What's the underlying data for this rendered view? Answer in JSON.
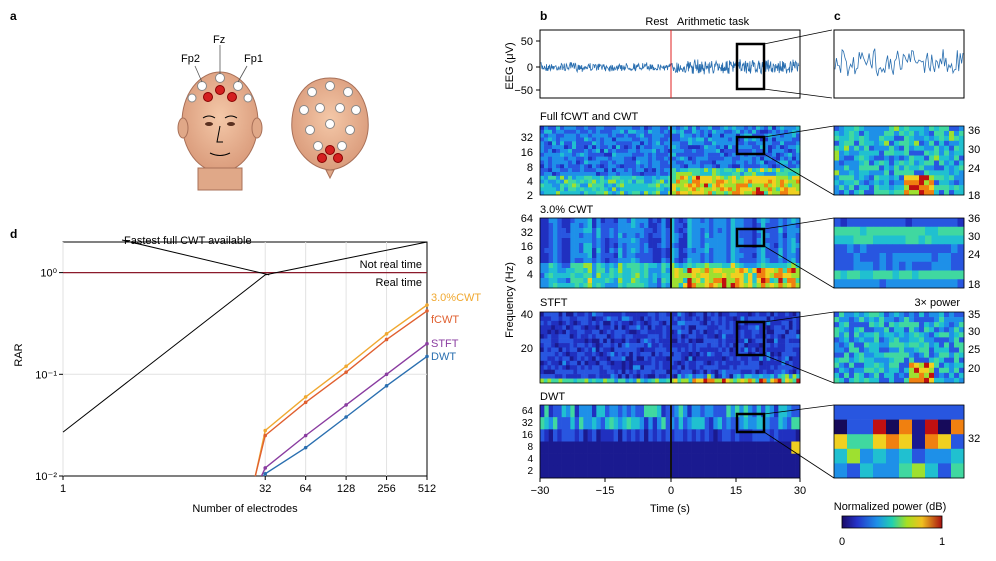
{
  "panel_labels": {
    "a": "a",
    "b": "b",
    "c": "c",
    "d": "d"
  },
  "panel_a": {
    "electrodes": {
      "fz": "Fz",
      "fp1": "Fp1",
      "fp2": "Fp2"
    }
  },
  "panel_b": {
    "rest_label": "Rest",
    "task_label": "Arithmetic task",
    "eeg_ylabel": "EEG (μV)",
    "eeg_yticks": [
      "50",
      "0",
      "−50"
    ],
    "freq_ylabel": "Frequency (Hz)",
    "time_xlabel": "Time (s)",
    "time_ticks": [
      "−30",
      "−15",
      "0",
      "15",
      "30"
    ],
    "rows": [
      {
        "title": "Full fCWT and CWT",
        "yticks": [
          "32",
          "16",
          "8",
          "4",
          "2"
        ]
      },
      {
        "title": "3.0% CWT",
        "yticks": [
          "64",
          "32",
          "16",
          "8",
          "4"
        ]
      },
      {
        "title": "STFT",
        "yticks": [
          "40",
          "20"
        ]
      },
      {
        "title": "DWT",
        "yticks": [
          "64",
          "32",
          "16",
          "8",
          "4",
          "2"
        ]
      }
    ]
  },
  "panel_c": {
    "yticks": [
      [
        "36",
        "30",
        "24",
        "18"
      ],
      [
        "36",
        "30",
        "24",
        "18"
      ],
      [
        "35",
        "30",
        "25",
        "20"
      ],
      [
        "32"
      ]
    ],
    "power_note": "3× power",
    "colorbar_label": "Normalized power (dB)",
    "colorbar_min": "0",
    "colorbar_max": "1"
  },
  "chart_data": {
    "type": "line",
    "title": "",
    "xlabel": "Number of electrodes",
    "ylabel": "RAR",
    "yscale": "log",
    "xlim": [
      1,
      512
    ],
    "ylim": [
      0.01,
      2
    ],
    "x_ticks": [
      "1",
      "32",
      "64",
      "128",
      "256",
      "512"
    ],
    "y_ticks": [
      "10⁻²",
      "10⁻¹",
      "10⁰"
    ],
    "x": [
      1,
      32,
      64,
      128,
      256,
      512
    ],
    "series": [
      {
        "name": "3.0%CWT",
        "color": "#f0a830",
        "x": [
          27,
          32,
          64,
          128,
          256,
          512
        ],
        "values": [
          0.01,
          0.028,
          0.06,
          0.12,
          0.25,
          0.48
        ]
      },
      {
        "name": "fCWT",
        "color": "#e06030",
        "x": [
          27,
          32,
          64,
          128,
          256,
          512
        ],
        "values": [
          0.01,
          0.025,
          0.053,
          0.105,
          0.22,
          0.42
        ]
      },
      {
        "name": "STFT",
        "color": "#8a3ca0",
        "x": [
          30,
          32,
          64,
          128,
          256,
          512
        ],
        "values": [
          0.01,
          0.012,
          0.025,
          0.05,
          0.1,
          0.2
        ]
      },
      {
        "name": "DWT",
        "color": "#2a6fb0",
        "x": [
          31,
          32,
          64,
          128,
          256,
          512
        ],
        "values": [
          0.01,
          0.0105,
          0.019,
          0.038,
          0.077,
          0.15
        ]
      },
      {
        "name": "Fastest full CWT available",
        "color": "#000000",
        "x": [
          1,
          32,
          512
        ],
        "values": [
          0.027,
          0.95,
          2.0
        ]
      }
    ],
    "threshold": {
      "value": 1,
      "color": "#8b1a2b",
      "label_above": "Not real time",
      "label_below": "Real time"
    },
    "annotation": "Fastest full CWT available"
  }
}
